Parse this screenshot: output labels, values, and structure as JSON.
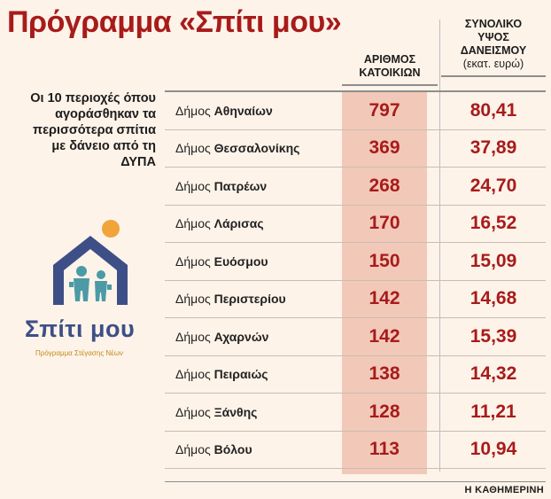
{
  "title": "Πρόγραμμα «Σπίτι μου»",
  "intro": "Οι 10 περιοχές όπου αγοράσθηκαν τα περισσότερα σπίτια με δάνειο από τη ΔΥΠΑ",
  "columns": {
    "residents_line1": "ΑΡΙΘΜΟΣ",
    "residents_line2": "ΚΑΤΟΙΚΙΩΝ",
    "loan_line1": "ΣΥΝΟΛΙΚΟ",
    "loan_line2": "ΥΨΟΣ",
    "loan_line3": "ΔΑΝΕΙΣΜΟΥ",
    "loan_unit": "(εκατ. ευρώ)"
  },
  "row_prefix": "Δήμος",
  "rows": [
    {
      "name": "Αθηναίων",
      "homes": "797",
      "loan": "80,41"
    },
    {
      "name": "Θεσσαλονίκης",
      "homes": "369",
      "loan": "37,89"
    },
    {
      "name": "Πατρέων",
      "homes": "268",
      "loan": "24,70"
    },
    {
      "name": "Λάρισας",
      "homes": "170",
      "loan": "16,52"
    },
    {
      "name": "Ευόσμου",
      "homes": "150",
      "loan": "15,09"
    },
    {
      "name": "Περιστερίου",
      "homes": "142",
      "loan": "14,68"
    },
    {
      "name": "Αχαρνών",
      "homes": "142",
      "loan": "15,39"
    },
    {
      "name": "Πειραιώς",
      "homes": "138",
      "loan": "14,32"
    },
    {
      "name": "Ξάνθης",
      "homes": "128",
      "loan": "11,21"
    },
    {
      "name": "Βόλου",
      "homes": "113",
      "loan": "10,94"
    }
  ],
  "logo": {
    "text": "Σπίτι μου",
    "subtitle": "Πρόγραμμα Στέγασης Νέων",
    "icon": "house-family-icon"
  },
  "source": "Η ΚΑΘΗΜΕΡΙΝΗ",
  "colors": {
    "accent": "#a81b1b",
    "band": "#f2c8b8",
    "background": "#fdf3e9",
    "logo_blue": "#3d4f86",
    "logo_teal": "#4b9aa6",
    "logo_sun": "#f0a43a"
  }
}
